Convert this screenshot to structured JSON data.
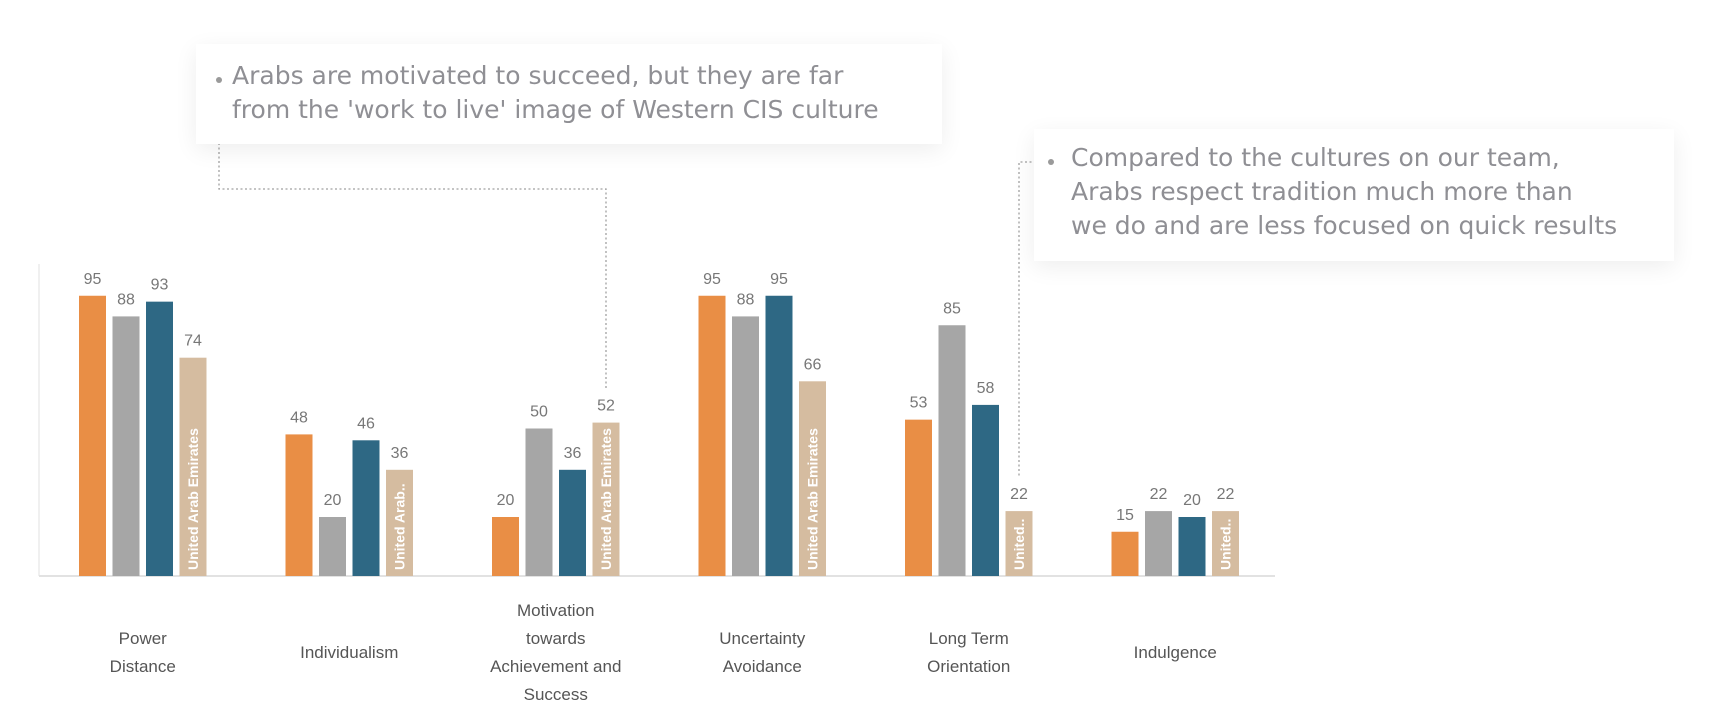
{
  "colors": {
    "series": [
      "#e98e45",
      "#a6a6a6",
      "#2e6884",
      "#d5bca0"
    ],
    "value_label": "#777777",
    "category_label": "#555555",
    "axis": "#d9d9d9",
    "connector": "#a0a0a0",
    "callout_text": "#8f8f94"
  },
  "chart_data": {
    "type": "bar",
    "categories": [
      [
        "Power",
        "Distance"
      ],
      [
        "Individualism"
      ],
      [
        "Motivation",
        "towards",
        "Achievement and",
        "Success"
      ],
      [
        "Uncertainty",
        "Avoidance"
      ],
      [
        "Long Term",
        "Orientation"
      ],
      [
        "Indulgence"
      ]
    ],
    "series": [
      {
        "values": [
          95,
          48,
          20,
          95,
          53,
          15
        ]
      },
      {
        "values": [
          88,
          20,
          50,
          88,
          85,
          22
        ]
      },
      {
        "values": [
          93,
          46,
          36,
          95,
          58,
          20
        ]
      },
      {
        "values": [
          74,
          36,
          52,
          66,
          22,
          22
        ],
        "bar_labels": [
          "United Arab Emirates",
          "United Arab..",
          "United Arab Emirates",
          "United Arab Emirates",
          "United..",
          "United.."
        ]
      }
    ],
    "ylim": [
      0,
      100
    ],
    "grid": false,
    "legend": "none"
  },
  "callouts": [
    {
      "lines": [
        "Arabs are motivated to succeed, but they are far",
        "from the 'work to live' image of Western CIS culture"
      ]
    },
    {
      "lines": [
        "Compared to the cultures on our team,",
        "Arabs respect tradition much more than",
        "we do and are less focused on quick results"
      ]
    }
  ]
}
